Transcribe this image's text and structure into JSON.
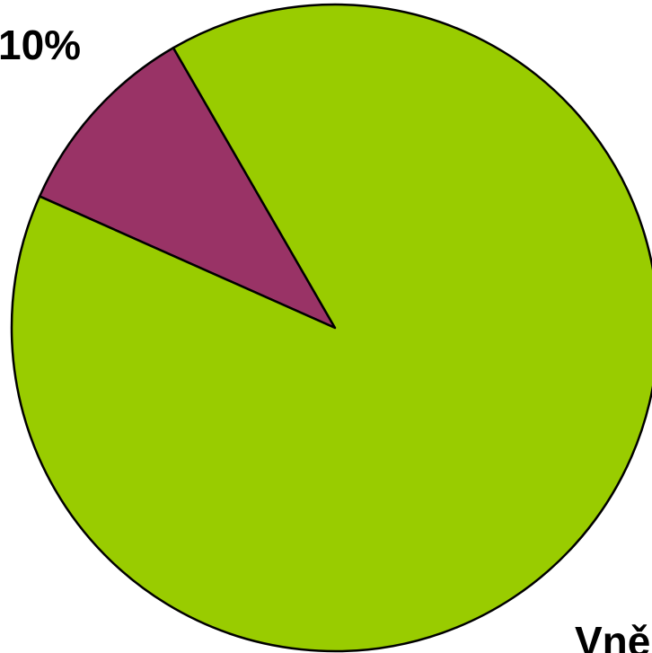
{
  "chart_data": {
    "type": "pie",
    "categories": [
      null,
      "Vně"
    ],
    "values": [
      10,
      90
    ],
    "value_labels": [
      "10%",
      null
    ],
    "colors": [
      "#993366",
      "#99cc00"
    ]
  }
}
